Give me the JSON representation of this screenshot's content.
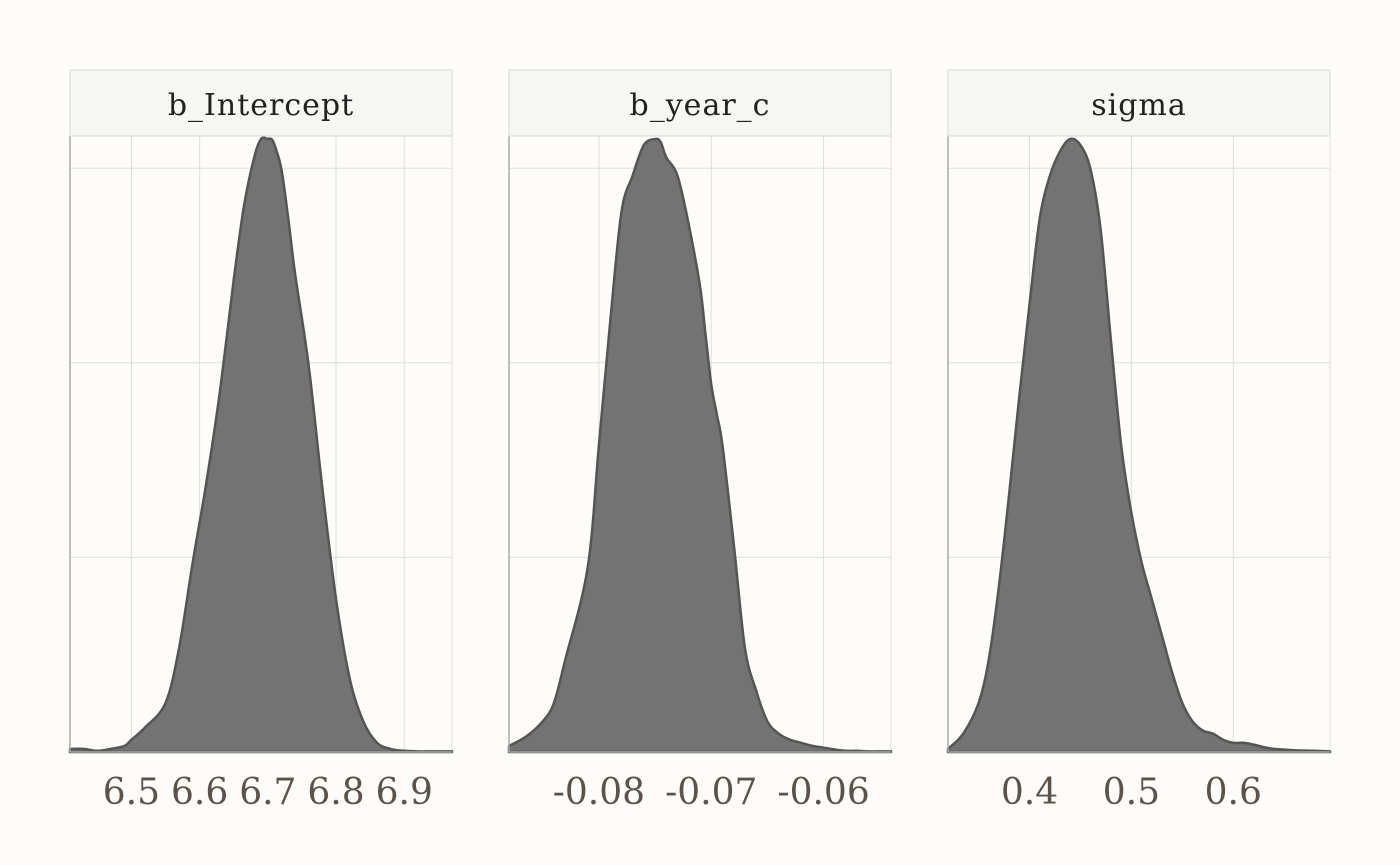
{
  "chart_data": [
    {
      "type": "area",
      "title": "b_Intercept",
      "xlim": [
        6.41,
        6.97
      ],
      "ticks": [
        6.5,
        6.6,
        6.7,
        6.8,
        6.9
      ],
      "tick_labels": [
        "6.5",
        "6.6",
        "6.7",
        "6.8",
        "6.9"
      ],
      "grid": true,
      "x": [
        6.41,
        6.43,
        6.45,
        6.47,
        6.49,
        6.5,
        6.52,
        6.55,
        6.57,
        6.59,
        6.61,
        6.63,
        6.65,
        6.665,
        6.68,
        6.69,
        6.7,
        6.705,
        6.71,
        6.72,
        6.73,
        6.74,
        6.76,
        6.78,
        6.8,
        6.82,
        6.84,
        6.86,
        6.88,
        6.9,
        6.92,
        6.94,
        6.97
      ],
      "y": [
        0.005,
        0.005,
        0.002,
        0.005,
        0.01,
        0.02,
        0.04,
        0.08,
        0.17,
        0.31,
        0.44,
        0.59,
        0.77,
        0.89,
        0.97,
        1.0,
        1.0,
        1.0,
        0.99,
        0.95,
        0.87,
        0.78,
        0.63,
        0.43,
        0.25,
        0.12,
        0.05,
        0.015,
        0.005,
        0.002,
        0.001,
        0.001,
        0.001
      ]
    },
    {
      "type": "area",
      "title": "b_year_c",
      "xlim": [
        -0.088,
        -0.054
      ],
      "ticks": [
        -0.08,
        -0.07,
        -0.06
      ],
      "tick_labels": [
        "-0.08",
        "-0.07",
        "-0.06"
      ],
      "grid": true,
      "x": [
        -0.088,
        -0.0865,
        -0.085,
        -0.084,
        -0.083,
        -0.081,
        -0.08,
        -0.079,
        -0.078,
        -0.077,
        -0.076,
        -0.075,
        -0.0745,
        -0.074,
        -0.073,
        -0.072,
        -0.071,
        -0.0705,
        -0.07,
        -0.0695,
        -0.069,
        -0.068,
        -0.067,
        -0.066,
        -0.065,
        -0.064,
        -0.063,
        -0.062,
        -0.061,
        -0.06,
        -0.059,
        -0.058,
        -0.057,
        -0.056,
        -0.055,
        -0.054
      ],
      "y": [
        0.01,
        0.025,
        0.05,
        0.08,
        0.15,
        0.3,
        0.5,
        0.7,
        0.88,
        0.94,
        0.99,
        1.0,
        0.995,
        0.97,
        0.94,
        0.86,
        0.76,
        0.68,
        0.6,
        0.55,
        0.5,
        0.34,
        0.17,
        0.1,
        0.05,
        0.03,
        0.02,
        0.015,
        0.01,
        0.007,
        0.004,
        0.002,
        0.002,
        0.001,
        0.001,
        0.001
      ]
    },
    {
      "type": "area",
      "title": "sigma",
      "xlim": [
        0.32,
        0.695
      ],
      "ticks": [
        0.4,
        0.5,
        0.6
      ],
      "tick_labels": [
        "0.4",
        "0.5",
        "0.6"
      ],
      "grid": true,
      "x": [
        0.32,
        0.335,
        0.35,
        0.36,
        0.37,
        0.38,
        0.39,
        0.4,
        0.41,
        0.42,
        0.43,
        0.44,
        0.45,
        0.46,
        0.47,
        0.48,
        0.49,
        0.5,
        0.51,
        0.52,
        0.53,
        0.54,
        0.55,
        0.56,
        0.57,
        0.58,
        0.59,
        0.6,
        0.61,
        0.62,
        0.63,
        0.64,
        0.66,
        0.68,
        0.695
      ],
      "y": [
        0.005,
        0.03,
        0.08,
        0.15,
        0.27,
        0.42,
        0.58,
        0.73,
        0.87,
        0.94,
        0.98,
        1.0,
        0.99,
        0.95,
        0.85,
        0.67,
        0.5,
        0.39,
        0.31,
        0.25,
        0.19,
        0.13,
        0.08,
        0.05,
        0.035,
        0.03,
        0.02,
        0.015,
        0.015,
        0.012,
        0.008,
        0.005,
        0.003,
        0.002,
        0.001
      ]
    }
  ],
  "colors": {
    "fill": "#737373",
    "outline": "#555555",
    "strip_bg": "#f6f6f3",
    "strip_border": "#d8d8d8",
    "grid": "#dedede",
    "axis": "#aaaaaa"
  }
}
